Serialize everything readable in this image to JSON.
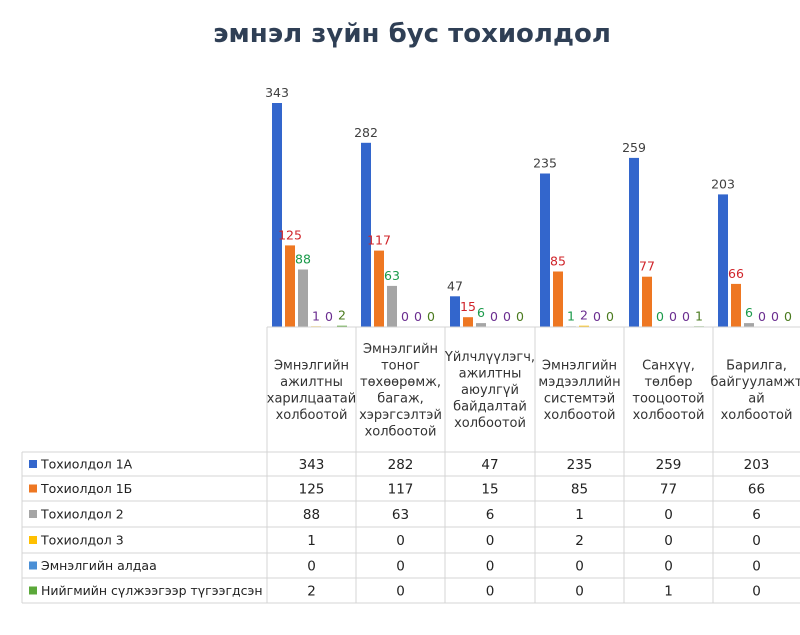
{
  "chart_data": {
    "type": "bar",
    "title": "эмнэл зүйн бус тохиолдол",
    "categories": [
      "Эмнэлгийн ажилтны харилцаатай холбоотой",
      "Эмнэлгийн тоног төхөөрөмж, багаж, хэрэгсэлтэй холбоотой",
      "Үйлчлүүлэгч, ажилтны аюулгүй байдалтай холбоотой",
      "Эмнэлгийн мэдээллийн системтэй холбоотой",
      "Санхүү, төлбөр тооцоотой холбоотой",
      "Барилга, байгууламжтай холбоотой"
    ],
    "category_lines": [
      [
        "Эмнэлгийн",
        "ажилтны",
        "харилцаатай",
        "холбоотой"
      ],
      [
        "Эмнэлгийн",
        "тоног",
        "төхөөрөмж,",
        "багаж,",
        "хэрэгсэлтэй",
        "холбоотой"
      ],
      [
        "Үйлчлүүлэгч,",
        "ажилтны",
        "аюулгүй",
        "байдалтай",
        "холбоотой"
      ],
      [
        "Эмнэлгийн",
        "мэдээллийн",
        "системтэй",
        "холбоотой"
      ],
      [
        "Санхүү,",
        "төлбөр",
        "тооцоотой",
        "холбоотой"
      ],
      [
        "Барилга,",
        "байгууламжт",
        "ай",
        "холбоотой"
      ]
    ],
    "series": [
      {
        "name": "Тохиолдол 1А",
        "color": "#3366cc",
        "label_color": "#404040",
        "values": [
          343,
          282,
          47,
          235,
          259,
          203
        ]
      },
      {
        "name": "Тохиолдол 1Б",
        "color": "#ee7722",
        "label_color": "#d0242a",
        "values": [
          125,
          117,
          15,
          85,
          77,
          66
        ]
      },
      {
        "name": "Тохиолдол 2",
        "color": "#a5a5a5",
        "label_color": "#1a9a4a",
        "values": [
          88,
          63,
          6,
          1,
          0,
          6
        ]
      },
      {
        "name": "Тохиолдол 3",
        "color": "#ffc000",
        "label_color": "#6a2d8f",
        "values": [
          1,
          0,
          0,
          2,
          0,
          0
        ]
      },
      {
        "name": "Эмнэлгийн алдаа",
        "color": "#4a8fd6",
        "label_color": "#6a2d8f",
        "values": [
          0,
          0,
          0,
          0,
          0,
          0
        ]
      },
      {
        "name": "Нийгмийн сүлжээгээр түгээгдсэн",
        "color": "#5ba83a",
        "label_color": "#4a7a1e",
        "values": [
          2,
          0,
          0,
          0,
          1,
          0
        ]
      }
    ],
    "ylim": [
      0,
      380
    ],
    "legend": "table-below",
    "data_table": true,
    "grid": false
  }
}
